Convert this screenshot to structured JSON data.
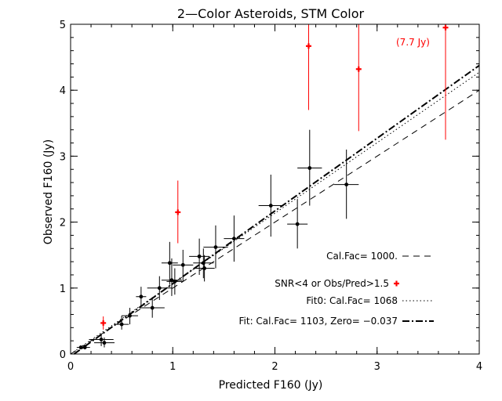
{
  "chart_data": {
    "type": "scatter",
    "title": "2—Color Asteroids, STM Color",
    "xlabel": "Predicted F160 (Jy)",
    "ylabel": "Observed F160 (Jy)",
    "xlim": [
      0,
      4
    ],
    "ylim": [
      0,
      5
    ],
    "xticks": [
      "0",
      "1",
      "2",
      "3",
      "4"
    ],
    "yticks": [
      "0",
      "1",
      "2",
      "3",
      "4",
      "5"
    ],
    "grid": false,
    "annotation": "(7.7 Jy)",
    "colors": {
      "good": "#000000",
      "flagged": "#ff0000"
    },
    "legend": [
      {
        "label": "Cal.Fac= 1000.",
        "style": "dashed"
      },
      {
        "label": "SNR<4 or Obs/Pred>1.5",
        "style": "red-plus"
      },
      {
        "label": "Fit0: Cal.Fac= 1068",
        "style": "dotted"
      },
      {
        "label": "Fit: Cal.Fac= 1103, Zero= −0.037",
        "style": "dashdot"
      }
    ],
    "lines": [
      {
        "name": "Cal.Fac= 1000.",
        "slope": 1.0,
        "intercept": 0.0,
        "style": "dashed"
      },
      {
        "name": "Fit0: Cal.Fac= 1068",
        "slope": 1.068,
        "intercept": 0.0,
        "style": "dotted"
      },
      {
        "name": "Fit: Cal.Fac= 1103, Zero= −0.037",
        "slope": 1.103,
        "intercept": -0.037,
        "style": "dashdot"
      }
    ],
    "series": [
      {
        "name": "SNR<4 or Obs/Pred>1.5",
        "points": [
          {
            "x": 0.32,
            "y": 0.47,
            "xerr": 0.0,
            "ylo": 0.37,
            "yhi": 0.57
          },
          {
            "x": 1.05,
            "y": 2.15,
            "xerr": 0.0,
            "ylo": 1.68,
            "yhi": 2.63
          },
          {
            "x": 2.33,
            "y": 4.67,
            "xerr": 0.0,
            "ylo": 3.7,
            "yhi": 5.0
          },
          {
            "x": 2.82,
            "y": 4.32,
            "xerr": 0.0,
            "ylo": 3.38,
            "yhi": 5.0
          },
          {
            "x": 3.67,
            "y": 4.95,
            "xerr": 0.0,
            "ylo": 3.25,
            "yhi": 5.0
          }
        ]
      },
      {
        "name": "good",
        "points": [
          {
            "x": 0.1,
            "y": 0.1,
            "xerr": 0.04,
            "ylo": 0.07,
            "yhi": 0.13
          },
          {
            "x": 0.14,
            "y": 0.1,
            "xerr": 0.05,
            "ylo": 0.07,
            "yhi": 0.13
          },
          {
            "x": 0.3,
            "y": 0.22,
            "xerr": 0.12,
            "ylo": 0.12,
            "yhi": 0.3
          },
          {
            "x": 0.33,
            "y": 0.17,
            "xerr": 0.1,
            "ylo": 0.1,
            "yhi": 0.25
          },
          {
            "x": 0.5,
            "y": 0.45,
            "xerr": 0.07,
            "ylo": 0.37,
            "yhi": 0.58
          },
          {
            "x": 0.58,
            "y": 0.58,
            "xerr": 0.08,
            "ylo": 0.45,
            "yhi": 0.7
          },
          {
            "x": 0.69,
            "y": 0.87,
            "xerr": 0.05,
            "ylo": 0.72,
            "yhi": 1.02
          },
          {
            "x": 0.8,
            "y": 0.7,
            "xerr": 0.12,
            "ylo": 0.55,
            "yhi": 0.85
          },
          {
            "x": 0.87,
            "y": 1.0,
            "xerr": 0.12,
            "ylo": 0.82,
            "yhi": 1.18
          },
          {
            "x": 0.97,
            "y": 1.38,
            "xerr": 0.08,
            "ylo": 1.05,
            "yhi": 1.7
          },
          {
            "x": 0.99,
            "y": 1.12,
            "xerr": 0.1,
            "ylo": 0.88,
            "yhi": 1.45
          },
          {
            "x": 1.02,
            "y": 1.1,
            "xerr": 0.08,
            "ylo": 0.9,
            "yhi": 1.3
          },
          {
            "x": 1.1,
            "y": 1.35,
            "xerr": 0.1,
            "ylo": 1.1,
            "yhi": 1.58
          },
          {
            "x": 1.26,
            "y": 1.48,
            "xerr": 0.1,
            "ylo": 1.2,
            "yhi": 1.75
          },
          {
            "x": 1.3,
            "y": 1.38,
            "xerr": 0.1,
            "ylo": 1.15,
            "yhi": 1.6
          },
          {
            "x": 1.31,
            "y": 1.3,
            "xerr": 0.1,
            "ylo": 1.1,
            "yhi": 1.5
          },
          {
            "x": 1.42,
            "y": 1.62,
            "xerr": 0.12,
            "ylo": 1.3,
            "yhi": 1.95
          },
          {
            "x": 1.6,
            "y": 1.75,
            "xerr": 0.1,
            "ylo": 1.4,
            "yhi": 2.1
          },
          {
            "x": 1.96,
            "y": 2.25,
            "xerr": 0.12,
            "ylo": 1.78,
            "yhi": 2.72
          },
          {
            "x": 2.22,
            "y": 1.97,
            "xerr": 0.1,
            "ylo": 1.6,
            "yhi": 2.35
          },
          {
            "x": 2.34,
            "y": 2.82,
            "xerr": 0.12,
            "ylo": 2.25,
            "yhi": 3.4
          },
          {
            "x": 2.7,
            "y": 2.57,
            "xerr": 0.12,
            "ylo": 2.05,
            "yhi": 3.1
          }
        ]
      }
    ]
  }
}
